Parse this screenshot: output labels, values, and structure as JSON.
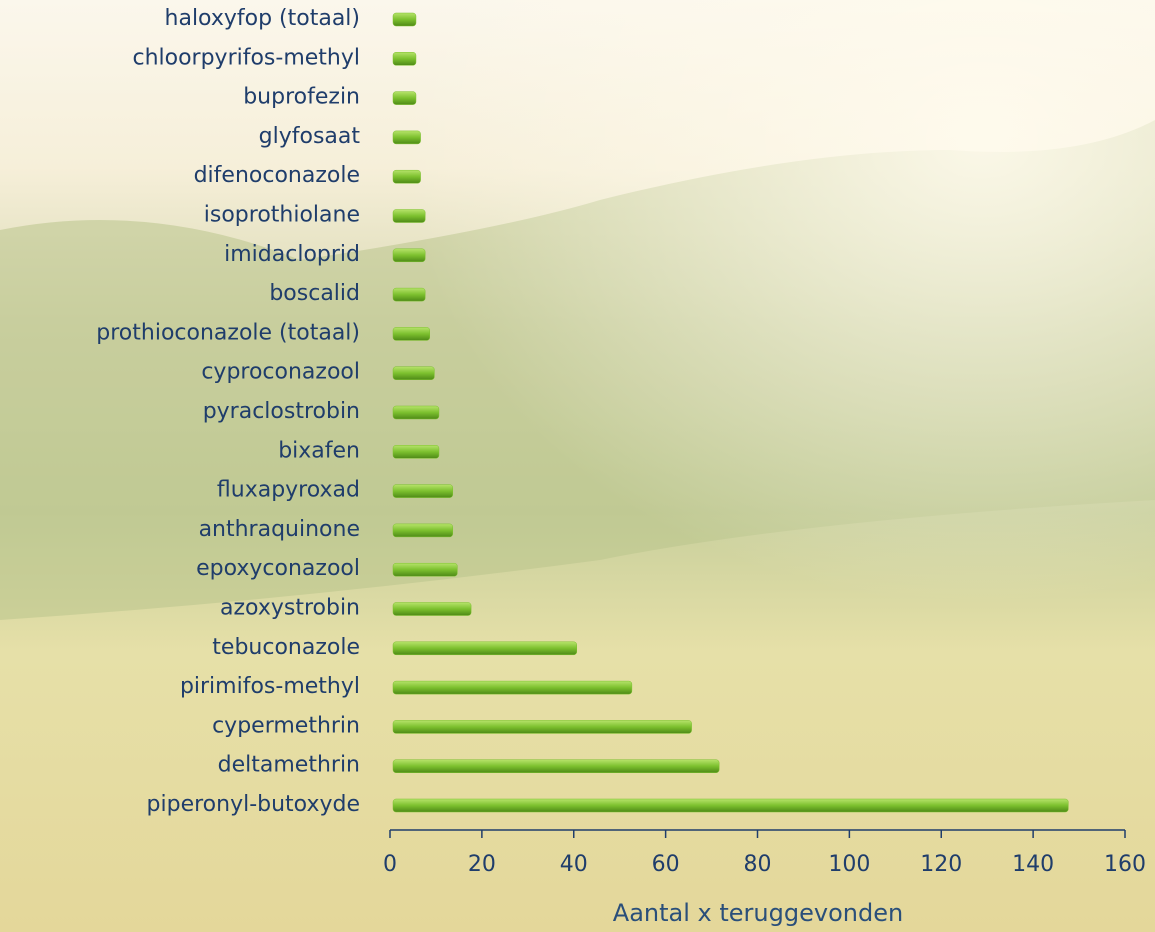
{
  "chart_data": {
    "type": "barh",
    "categories": [
      "haloxyfop (totaal)",
      "chloorpyrifos-methyl",
      "buprofezin",
      "glyfosaat",
      "difenoconazole",
      "isoprothiolane",
      "imidacloprid",
      "boscalid",
      "prothioconazole (totaal)",
      "cyproconazool",
      "pyraclostrobin",
      "bixafen",
      "fluxapyroxad",
      "anthraquinone",
      "epoxyconazool",
      "azoxystrobin",
      "tebuconazole",
      "pirimifos-methyl",
      "cypermethrin",
      "deltamethrin",
      "piperonyl-butoxyde"
    ],
    "values": [
      5,
      5,
      5,
      6,
      6,
      7,
      7,
      7,
      8,
      9,
      10,
      10,
      13,
      13,
      14,
      17,
      40,
      52,
      65,
      71,
      147
    ],
    "color": "#7cc02e",
    "xlabel": "Aantal x teruggevonden",
    "xlim": [
      0,
      160
    ],
    "xticks": [
      0,
      20,
      40,
      60,
      80,
      100,
      120,
      140,
      160
    ]
  }
}
